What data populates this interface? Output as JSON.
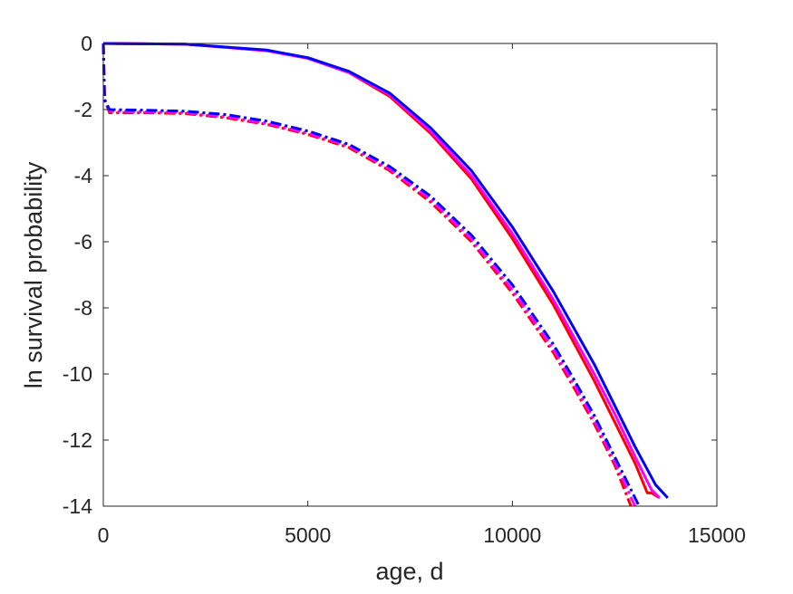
{
  "chart_data": {
    "type": "line",
    "title": "",
    "xlabel": "age, d",
    "ylabel": "ln survival probability",
    "xlim": [
      0,
      15000
    ],
    "ylim": [
      -14,
      0
    ],
    "xticks": [
      0,
      5000,
      10000,
      15000
    ],
    "yticks": [
      0,
      -2,
      -4,
      -6,
      -8,
      -10,
      -12,
      -14
    ],
    "xtick_labels": [
      "0",
      "5000",
      "10000",
      "15000"
    ],
    "ytick_labels": [
      "0",
      "-2",
      "-4",
      "-6",
      "-8",
      "-10",
      "-12",
      "-14"
    ],
    "grid": false,
    "series": [
      {
        "color": "#ff0000",
        "style": "solid",
        "x": [
          0,
          2000,
          4000,
          5000,
          6000,
          7000,
          8000,
          9000,
          10000,
          11000,
          12000,
          12500,
          13000,
          13300,
          13400,
          13600
        ],
        "y": [
          0,
          -0.02,
          -0.22,
          -0.45,
          -0.88,
          -1.6,
          -2.72,
          -4.1,
          -5.9,
          -7.9,
          -10.2,
          -11.45,
          -12.7,
          -13.6,
          -13.6,
          -13.75
        ]
      },
      {
        "color": "#ff00ff",
        "style": "solid",
        "x": [
          0,
          2000,
          4000,
          5000,
          6000,
          7000,
          8000,
          9000,
          10000,
          11000,
          12000,
          12500,
          13000,
          13400,
          13600
        ],
        "y": [
          0,
          -0.02,
          -0.22,
          -0.45,
          -0.87,
          -1.55,
          -2.65,
          -4.0,
          -5.75,
          -7.75,
          -10.0,
          -11.2,
          -12.5,
          -13.5,
          -13.75
        ]
      },
      {
        "color": "#0000ff",
        "style": "solid",
        "x": [
          0,
          2000,
          4000,
          5000,
          6000,
          7000,
          8000,
          9000,
          10000,
          11000,
          12000,
          12500,
          13000,
          13500,
          13800
        ],
        "y": [
          0,
          -0.02,
          -0.2,
          -0.43,
          -0.84,
          -1.5,
          -2.55,
          -3.85,
          -5.55,
          -7.5,
          -9.7,
          -10.95,
          -12.2,
          -13.35,
          -13.75
        ]
      },
      {
        "color": "#ff0000",
        "style": "dashed",
        "x": [
          0,
          30,
          150,
          1000,
          2000,
          3000,
          4000,
          5000,
          6000,
          7000,
          8000,
          9000,
          10000,
          11000,
          11500,
          12000,
          12500,
          12900
        ],
        "y": [
          0,
          -1.7,
          -2.1,
          -2.1,
          -2.12,
          -2.25,
          -2.45,
          -2.75,
          -3.15,
          -3.85,
          -4.8,
          -6.0,
          -7.55,
          -9.35,
          -10.4,
          -11.5,
          -12.75,
          -14
        ]
      },
      {
        "color": "#ff00ff",
        "style": "dashed",
        "x": [
          0,
          30,
          150,
          1000,
          2000,
          3000,
          4000,
          5000,
          6000,
          7000,
          8000,
          9000,
          10000,
          11000,
          11500,
          12000,
          12500,
          13000
        ],
        "y": [
          0,
          -1.7,
          -2.05,
          -2.07,
          -2.09,
          -2.22,
          -2.42,
          -2.72,
          -3.1,
          -3.8,
          -4.72,
          -5.92,
          -7.45,
          -9.25,
          -10.3,
          -11.4,
          -12.65,
          -14
        ]
      },
      {
        "color": "#0000ff",
        "style": "dashed",
        "x": [
          0,
          30,
          150,
          1000,
          2000,
          3000,
          4000,
          5000,
          6000,
          7000,
          8000,
          9000,
          10000,
          11000,
          11500,
          12000,
          12500,
          13100
        ],
        "y": [
          0,
          -1.7,
          -2.0,
          -2.02,
          -2.05,
          -2.15,
          -2.35,
          -2.65,
          -3.05,
          -3.72,
          -4.62,
          -5.8,
          -7.3,
          -9.1,
          -10.15,
          -11.25,
          -12.5,
          -14
        ]
      }
    ]
  }
}
